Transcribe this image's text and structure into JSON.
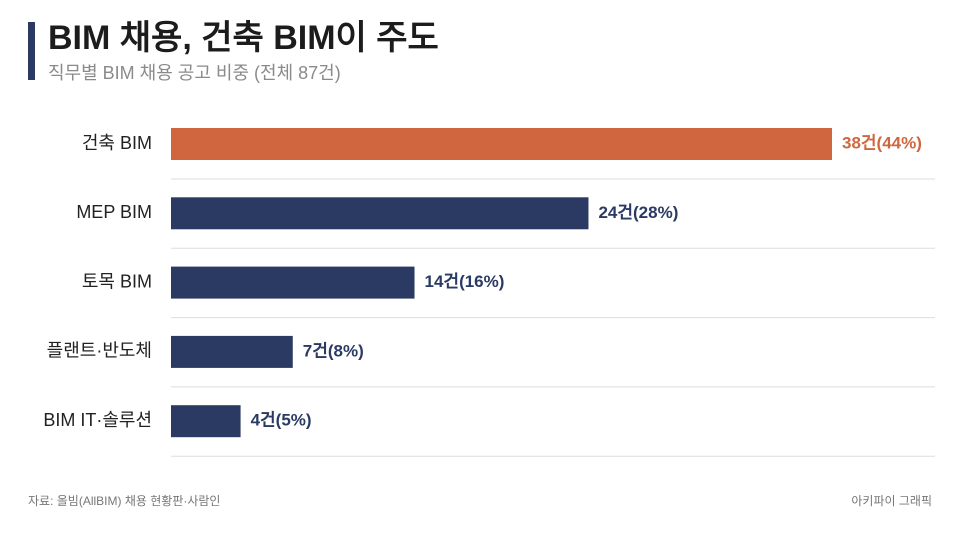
{
  "chart_data": {
    "type": "bar",
    "orientation": "horizontal",
    "title": "BIM 채용, 건축 BIM이 주도",
    "subtitle": "직무별 BIM 채용 공고 비중 (전체 87건)",
    "categories": [
      "건축 BIM",
      "MEP BIM",
      "토목 BIM",
      "플랜트·반도체",
      "BIM IT·솔루션"
    ],
    "values": [
      38,
      24,
      14,
      7,
      4
    ],
    "value_labels": [
      "38건(44%)",
      "24건(28%)",
      "14건(16%)",
      "7건(8%)",
      "4건(5%)"
    ],
    "colors": [
      "#d0663f",
      "#2b3a63",
      "#2b3a63",
      "#2b3a63",
      "#2b3a63"
    ],
    "source": "자료: 올빔(AllBIM) 채용 현황판·사람인",
    "credit": "아키파이 그래픽"
  }
}
